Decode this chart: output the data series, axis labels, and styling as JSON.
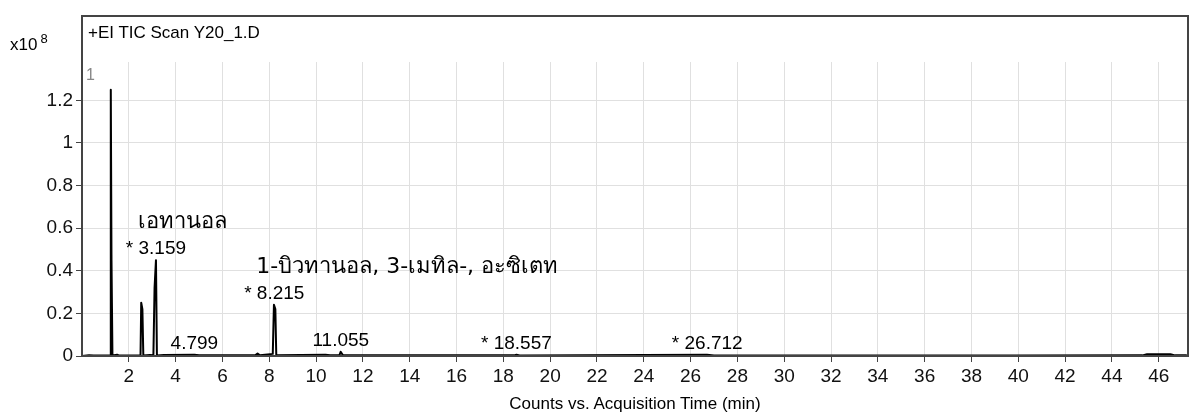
{
  "chart_data": {
    "type": "line",
    "title": "+EI TIC Scan Y20_1.D",
    "xlabel": "Counts vs. Acquisition Time (min)",
    "ylabel": "x10$^{8}$",
    "xlim": [
      0,
      47.25
    ],
    "ylim": [
      0,
      1.38
    ],
    "xticks": [
      2,
      4,
      6,
      8,
      10,
      12,
      14,
      16,
      18,
      20,
      22,
      24,
      26,
      28,
      30,
      32,
      34,
      36,
      38,
      40,
      42,
      44,
      46
    ],
    "yticks": [
      0,
      0.2,
      0.4,
      0.6,
      0.8,
      1,
      1.2
    ],
    "grid": true,
    "legend": false,
    "marker": "none",
    "line_style": "solid",
    "series": [
      {
        "color": "#000000",
        "x": [
          0,
          0.3,
          0.5,
          1.2,
          1.23,
          1.26,
          1.3,
          1.5,
          1.6,
          2.5,
          2.53,
          2.58,
          2.62,
          2.9,
          3.05,
          3.1,
          3.16,
          3.2,
          3.5,
          4.8,
          5.0,
          7.4,
          7.5,
          7.6,
          8.15,
          8.2,
          8.26,
          8.3,
          10.4,
          10.6,
          11.0,
          11.05,
          11.15,
          18.5,
          18.56,
          18.7,
          26.7,
          27,
          45.3,
          45.5,
          46.5,
          46.7,
          47.2
        ],
        "values": [
          0,
          0.004,
          0.002,
          0.003,
          1.25,
          0.45,
          0.002,
          0.006,
          0.002,
          0.003,
          0.25,
          0.22,
          0.002,
          0.005,
          0.004,
          0.32,
          0.45,
          0.002,
          0.005,
          0.006,
          0.003,
          0.003,
          0.012,
          0.003,
          0.01,
          0.24,
          0.22,
          0.004,
          0.006,
          0.003,
          0.004,
          0.02,
          0.003,
          0.004,
          0.006,
          0.002,
          0.006,
          0.002,
          0.003,
          0.008,
          0.008,
          0.003,
          0.003
        ]
      }
    ],
    "annotations": [
      "1",
      {
        "text": "* 3.159",
        "x": 3.159,
        "y": 0.45
      },
      {
        "text": "เอทานอล",
        "x": 3.159,
        "y": 0.45
      },
      {
        "text": "4.799",
        "x": 4.799,
        "y": 0.006
      },
      {
        "text": "* 8.215",
        "x": 8.215,
        "y": 0.24
      },
      {
        "text": "1-บิวทานอล, 3-เมทิล-, อะซิเตท",
        "x": 8.215,
        "y": 0.24
      },
      {
        "text": "11.055",
        "x": 11.055,
        "y": 0.02
      },
      {
        "text": "* 18.557",
        "x": 18.557,
        "y": 0.006
      },
      {
        "text": "* 26.712",
        "x": 26.712,
        "y": 0.006
      }
    ]
  }
}
